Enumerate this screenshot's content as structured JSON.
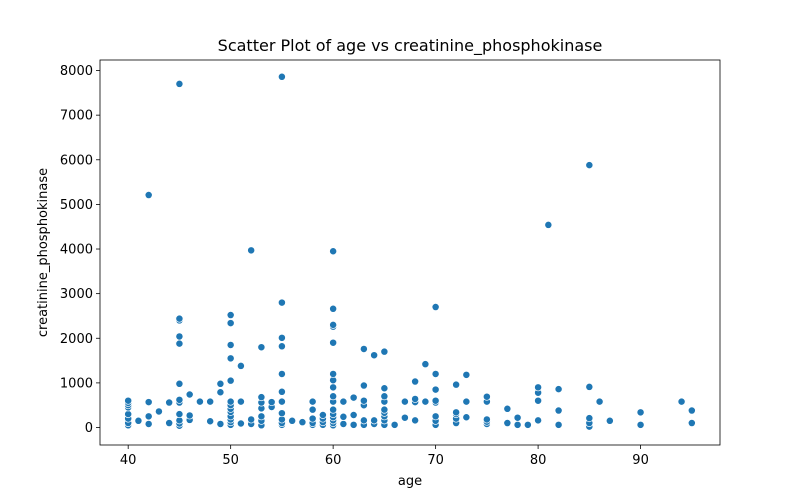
{
  "chart_data": {
    "type": "scatter",
    "title": "Scatter Plot of age vs creatinine_phosphokinase",
    "xlabel": "age",
    "ylabel": "creatinine_phosphokinase",
    "xlim": [
      37.25,
      97.75
    ],
    "ylim": [
      -392,
      8236
    ],
    "xticks": [
      40,
      50,
      60,
      70,
      80,
      90
    ],
    "yticks": [
      0,
      1000,
      2000,
      3000,
      4000,
      5000,
      6000,
      7000,
      8000
    ],
    "grid": false,
    "marker_color": "#1f77b4",
    "series": [
      {
        "name": "age vs creatinine_phosphokinase",
        "points": [
          [
            40,
            50
          ],
          [
            40,
            100
          ],
          [
            40,
            200
          ],
          [
            40,
            300
          ],
          [
            40,
            450
          ],
          [
            40,
            500
          ],
          [
            40,
            550
          ],
          [
            40,
            600
          ],
          [
            41,
            150
          ],
          [
            42,
            80
          ],
          [
            42,
            250
          ],
          [
            42,
            570
          ],
          [
            42,
            5210
          ],
          [
            43,
            360
          ],
          [
            44,
            100
          ],
          [
            44,
            560
          ],
          [
            45,
            40
          ],
          [
            45,
            90
          ],
          [
            45,
            160
          ],
          [
            45,
            300
          ],
          [
            45,
            560
          ],
          [
            45,
            620
          ],
          [
            45,
            980
          ],
          [
            45,
            1880
          ],
          [
            45,
            2040
          ],
          [
            45,
            2400
          ],
          [
            45,
            2440
          ],
          [
            45,
            7700
          ],
          [
            46,
            170
          ],
          [
            46,
            270
          ],
          [
            46,
            740
          ],
          [
            47,
            580
          ],
          [
            48,
            140
          ],
          [
            48,
            580
          ],
          [
            49,
            80
          ],
          [
            49,
            790
          ],
          [
            49,
            980
          ],
          [
            50,
            60
          ],
          [
            50,
            120
          ],
          [
            50,
            180
          ],
          [
            50,
            250
          ],
          [
            50,
            350
          ],
          [
            50,
            420
          ],
          [
            50,
            500
          ],
          [
            50,
            580
          ],
          [
            50,
            1050
          ],
          [
            50,
            1550
          ],
          [
            50,
            1850
          ],
          [
            50,
            2340
          ],
          [
            50,
            2520
          ],
          [
            51,
            90
          ],
          [
            51,
            580
          ],
          [
            51,
            1380
          ],
          [
            52,
            80
          ],
          [
            52,
            180
          ],
          [
            52,
            3970
          ],
          [
            53,
            50
          ],
          [
            53,
            150
          ],
          [
            53,
            250
          ],
          [
            53,
            430
          ],
          [
            53,
            560
          ],
          [
            53,
            680
          ],
          [
            53,
            1800
          ],
          [
            54,
            460
          ],
          [
            54,
            570
          ],
          [
            55,
            60
          ],
          [
            55,
            100
          ],
          [
            55,
            180
          ],
          [
            55,
            320
          ],
          [
            55,
            580
          ],
          [
            55,
            800
          ],
          [
            55,
            1200
          ],
          [
            55,
            1820
          ],
          [
            55,
            2010
          ],
          [
            55,
            2800
          ],
          [
            55,
            7860
          ],
          [
            56,
            150
          ],
          [
            57,
            120
          ],
          [
            58,
            60
          ],
          [
            58,
            100
          ],
          [
            58,
            200
          ],
          [
            58,
            400
          ],
          [
            58,
            580
          ],
          [
            59,
            60
          ],
          [
            59,
            120
          ],
          [
            59,
            200
          ],
          [
            59,
            280
          ],
          [
            60,
            50
          ],
          [
            60,
            100
          ],
          [
            60,
            160
          ],
          [
            60,
            230
          ],
          [
            60,
            300
          ],
          [
            60,
            400
          ],
          [
            60,
            580
          ],
          [
            60,
            700
          ],
          [
            60,
            900
          ],
          [
            60,
            1060
          ],
          [
            60,
            1200
          ],
          [
            60,
            1900
          ],
          [
            60,
            2260
          ],
          [
            60,
            2300
          ],
          [
            60,
            2660
          ],
          [
            60,
            3950
          ],
          [
            61,
            80
          ],
          [
            61,
            240
          ],
          [
            61,
            580
          ],
          [
            62,
            60
          ],
          [
            62,
            280
          ],
          [
            62,
            670
          ],
          [
            63,
            60
          ],
          [
            63,
            160
          ],
          [
            63,
            500
          ],
          [
            63,
            600
          ],
          [
            63,
            940
          ],
          [
            63,
            1760
          ],
          [
            64,
            80
          ],
          [
            64,
            160
          ],
          [
            64,
            1620
          ],
          [
            65,
            60
          ],
          [
            65,
            160
          ],
          [
            65,
            250
          ],
          [
            65,
            330
          ],
          [
            65,
            400
          ],
          [
            65,
            580
          ],
          [
            65,
            700
          ],
          [
            65,
            880
          ],
          [
            65,
            1700
          ],
          [
            66,
            60
          ],
          [
            67,
            220
          ],
          [
            67,
            580
          ],
          [
            68,
            160
          ],
          [
            68,
            570
          ],
          [
            68,
            640
          ],
          [
            68,
            1030
          ],
          [
            69,
            580
          ],
          [
            69,
            1420
          ],
          [
            70,
            60
          ],
          [
            70,
            150
          ],
          [
            70,
            250
          ],
          [
            70,
            560
          ],
          [
            70,
            600
          ],
          [
            70,
            850
          ],
          [
            70,
            1200
          ],
          [
            70,
            2700
          ],
          [
            72,
            100
          ],
          [
            72,
            200
          ],
          [
            72,
            300
          ],
          [
            72,
            340
          ],
          [
            72,
            960
          ],
          [
            73,
            230
          ],
          [
            73,
            580
          ],
          [
            73,
            1180
          ],
          [
            75,
            80
          ],
          [
            75,
            130
          ],
          [
            75,
            180
          ],
          [
            75,
            580
          ],
          [
            75,
            690
          ],
          [
            77,
            100
          ],
          [
            77,
            420
          ],
          [
            78,
            60
          ],
          [
            78,
            220
          ],
          [
            79,
            60
          ],
          [
            80,
            160
          ],
          [
            80,
            600
          ],
          [
            80,
            780
          ],
          [
            80,
            900
          ],
          [
            81,
            4540
          ],
          [
            82,
            60
          ],
          [
            82,
            380
          ],
          [
            82,
            860
          ],
          [
            85,
            20
          ],
          [
            85,
            100
          ],
          [
            85,
            210
          ],
          [
            85,
            910
          ],
          [
            85,
            5880
          ],
          [
            86,
            580
          ],
          [
            87,
            150
          ],
          [
            90,
            60
          ],
          [
            90,
            340
          ],
          [
            94,
            580
          ],
          [
            95,
            100
          ],
          [
            95,
            380
          ]
        ]
      }
    ]
  }
}
